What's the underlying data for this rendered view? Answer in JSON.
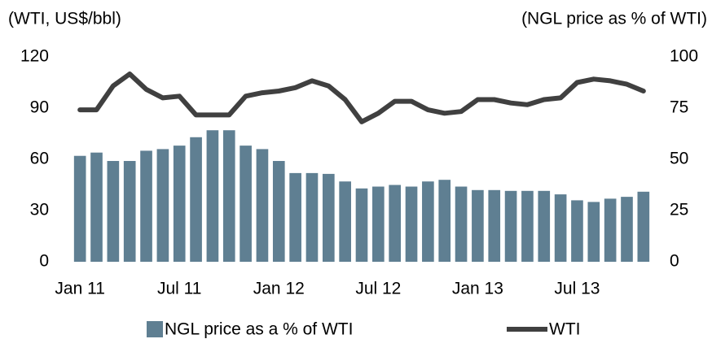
{
  "chart_data": {
    "type": "bar-line",
    "y_label": "(WTI, US$/bbl)",
    "y2_label": "(NGL price as % of WTI)",
    "categories": [
      "Jan 11",
      null,
      null,
      null,
      null,
      null,
      "Jul 11",
      null,
      null,
      null,
      null,
      null,
      "Jan 12",
      null,
      null,
      null,
      null,
      null,
      "Jul 12",
      null,
      null,
      null,
      null,
      null,
      "Jan 13",
      null,
      null,
      null,
      null,
      null,
      "Jul 13",
      null,
      null,
      null,
      null
    ],
    "series": [
      {
        "name": "NGL price as a % of WTI",
        "color": "#5f7f92",
        "axis": "y2",
        "kind": "bar",
        "values": [
          51.7,
          53.3,
          49.2,
          49.2,
          54.2,
          55,
          56.7,
          60.8,
          64.2,
          64.2,
          56.7,
          55,
          49.2,
          43.3,
          43.3,
          42.9,
          39.2,
          35.8,
          36.7,
          37.5,
          36.7,
          39.2,
          40,
          36.7,
          35,
          35,
          34.6,
          34.6,
          34.6,
          32.9,
          30,
          29.2,
          30.8,
          31.7,
          34.2
        ]
      },
      {
        "name": "WTI",
        "color": "#404040",
        "axis": "y",
        "kind": "line",
        "values": [
          89,
          89,
          103,
          110,
          101,
          96,
          97,
          86,
          86,
          86,
          97,
          99,
          100,
          102,
          106,
          103,
          95,
          82,
          87,
          94,
          94,
          89,
          87,
          88,
          95,
          95,
          93,
          92,
          95,
          96,
          105,
          107,
          106,
          104,
          100
        ]
      }
    ],
    "ylim": [
      0,
      120
    ],
    "yticks": [
      0,
      30,
      60,
      90,
      120
    ],
    "y2lim": [
      0,
      100
    ],
    "y2ticks": [
      0,
      25,
      50,
      75,
      100
    ]
  }
}
